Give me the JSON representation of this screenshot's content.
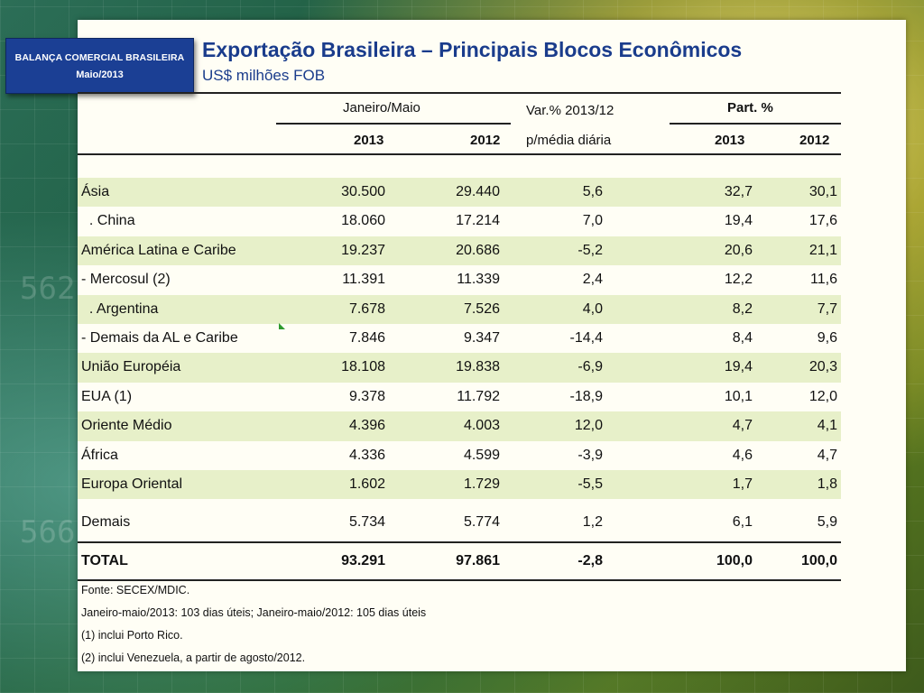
{
  "badge": {
    "line1": "BALANÇA COMERCIAL BRASILEIRA",
    "line2": "Maio/2013"
  },
  "title": "Exportação Brasileira – Principais Blocos Econômicos",
  "subtitle": "US$ milhões FOB",
  "background_numbers": [
    "562",
    "566"
  ],
  "table": {
    "group_period": "Janeiro/Maio",
    "var_label_1": "Var.% 2013/12",
    "var_label_2": "p/média diária",
    "group_part": "Part. %",
    "col_2013": "2013",
    "col_2012": "2012",
    "part_2013": "2013",
    "part_2012": "2012",
    "rows": [
      {
        "label": "Ásia",
        "v2013": "30.500",
        "v2012": "29.440",
        "var": "5,6",
        "p2013": "32,7",
        "p2012": "30,1"
      },
      {
        "label": "  . China",
        "v2013": "18.060",
        "v2012": "17.214",
        "var": "7,0",
        "p2013": "19,4",
        "p2012": "17,6"
      },
      {
        "label": "América Latina e Caribe",
        "v2013": "19.237",
        "v2012": "20.686",
        "var": "-5,2",
        "p2013": "20,6",
        "p2012": "21,1"
      },
      {
        "label": "- Mercosul (2)",
        "v2013": "11.391",
        "v2012": "11.339",
        "var": "2,4",
        "p2013": "12,2",
        "p2012": "11,6"
      },
      {
        "label": "  . Argentina",
        "v2013": "7.678",
        "v2012": "7.526",
        "var": "4,0",
        "p2013": "8,2",
        "p2012": "7,7"
      },
      {
        "label": "- Demais da AL e Caribe",
        "v2013": "7.846",
        "v2012": "9.347",
        "var": "-14,4",
        "p2013": "8,4",
        "p2012": "9,6"
      },
      {
        "label": "União Européia",
        "v2013": "18.108",
        "v2012": "19.838",
        "var": "-6,9",
        "p2013": "19,4",
        "p2012": "20,3"
      },
      {
        "label": "EUA (1)",
        "v2013": "9.378",
        "v2012": "11.792",
        "var": "-18,9",
        "p2013": "10,1",
        "p2012": "12,0"
      },
      {
        "label": "Oriente Médio",
        "v2013": "4.396",
        "v2012": "4.003",
        "var": "12,0",
        "p2013": "4,7",
        "p2012": "4,1"
      },
      {
        "label": "África",
        "v2013": "4.336",
        "v2012": "4.599",
        "var": "-3,9",
        "p2013": "4,6",
        "p2012": "4,7"
      },
      {
        "label": "Europa Oriental",
        "v2013": "1.602",
        "v2012": "1.729",
        "var": "-5,5",
        "p2013": "1,7",
        "p2012": "1,8"
      }
    ],
    "demais": {
      "label": "Demais",
      "v2013": "5.734",
      "v2012": "5.774",
      "var": "1,2",
      "p2013": "6,1",
      "p2012": "5,9"
    },
    "total": {
      "label": "TOTAL",
      "v2013": "93.291",
      "v2012": "97.861",
      "var": "-2,8",
      "p2013": "100,0",
      "p2012": "100,0"
    }
  },
  "footnotes": [
    "Fonte: SECEX/MDIC.",
    "Janeiro-maio/2013: 103 dias úteis; Janeiro-maio/2012: 105 dias úteis",
    "(1) inclui Porto Rico.",
    "(2) inclui Venezuela, a partir de agosto/2012."
  ],
  "colors": {
    "title": "#1a3c8c",
    "badge": "#1b3f94",
    "row_alt": "#e7f0c9",
    "panel": "#fffef5"
  }
}
